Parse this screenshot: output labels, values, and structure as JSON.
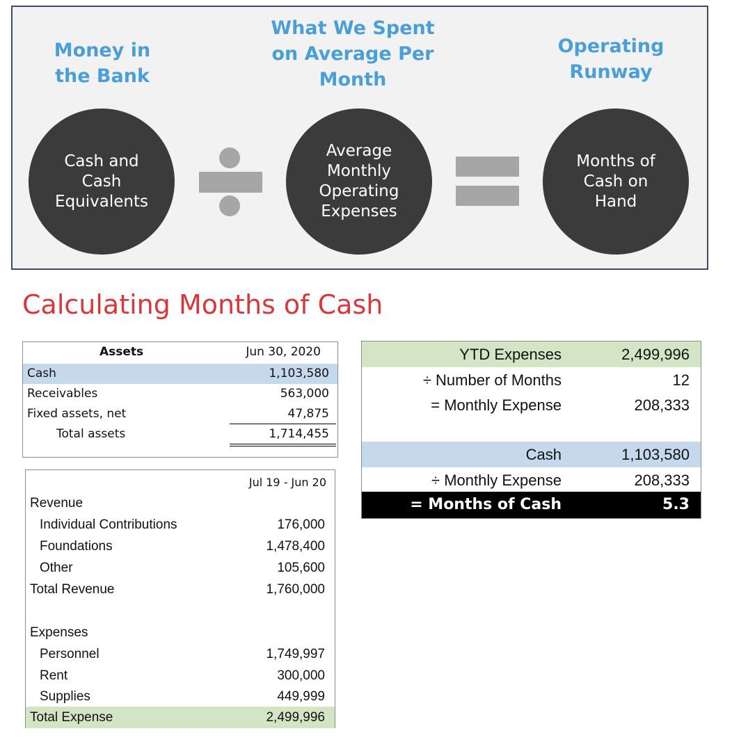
{
  "formula": {
    "headings": {
      "left": [
        "Money in",
        "the Bank"
      ],
      "middle": [
        "What We Spent",
        "on Average Per",
        "Month"
      ],
      "right": [
        "Operating",
        "Runway"
      ]
    },
    "circles": {
      "left": [
        "Cash and",
        "Cash",
        "Equivalents"
      ],
      "middle": [
        "Average",
        "Monthly",
        "Operating",
        "Expenses"
      ],
      "right": [
        "Months of",
        "Cash on",
        "Hand"
      ]
    },
    "operators": [
      "divide-icon",
      "equals-icon"
    ]
  },
  "section_title": "Calculating Months of Cash",
  "balance_sheet": {
    "header_label": "Assets",
    "header_date": "Jun 30, 2020",
    "rows": [
      {
        "label": "Cash",
        "value": "1,103,580"
      },
      {
        "label": "Receivables",
        "value": "563,000"
      },
      {
        "label": "Fixed assets, net",
        "value": "47,875"
      },
      {
        "label": "Total assets",
        "value": "1,714,455"
      }
    ]
  },
  "income_statement": {
    "period": "Jul 19 - Jun 20",
    "revenue_heading": "Revenue",
    "revenue_rows": [
      {
        "label": "Individual Contributions",
        "value": "176,000"
      },
      {
        "label": "Foundations",
        "value": "1,478,400"
      },
      {
        "label": "Other",
        "value": "105,600"
      }
    ],
    "total_revenue": {
      "label": "Total Revenue",
      "value": "1,760,000"
    },
    "expenses_heading": "Expenses",
    "expense_rows": [
      {
        "label": "Personnel",
        "value": "1,749,997"
      },
      {
        "label": "Rent",
        "value": "300,000"
      },
      {
        "label": "Supplies",
        "value": "449,999"
      }
    ],
    "total_expense": {
      "label": "Total Expense",
      "value": "2,499,996"
    }
  },
  "months_calc": {
    "rows": [
      {
        "label": "YTD Expenses",
        "value": "2,499,996"
      },
      {
        "label": "÷ Number of Months",
        "value": "12"
      },
      {
        "label": "= Monthly Expense",
        "value": "208,333"
      },
      {
        "label": "Cash",
        "value": "1,103,580"
      },
      {
        "label": "÷ Monthly Expense",
        "value": "208,333"
      },
      {
        "label": "= Months of Cash",
        "value": "5.3"
      }
    ]
  },
  "colors": {
    "heading_blue": "#4a9fd6",
    "circle": "#3b3b3b",
    "title_red": "#d9363e",
    "highlight_green": "#d3e5c5",
    "highlight_blue": "#c5d8ec"
  }
}
